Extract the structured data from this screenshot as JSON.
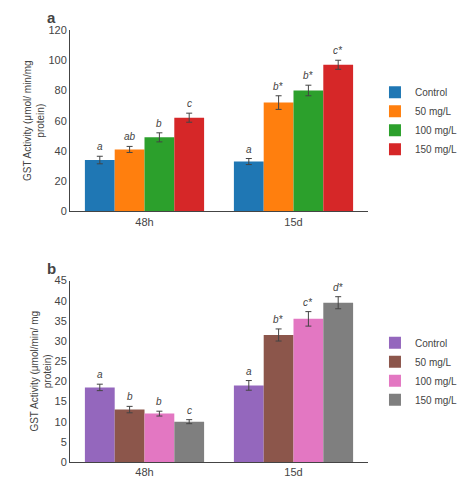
{
  "chart_data": [
    {
      "type": "bar",
      "title": "a",
      "ylabel": "GST Activity (μmol/ min/mg\nprotein)",
      "categories": [
        "48h",
        "15d"
      ],
      "series": [
        {
          "name": "Control",
          "values": [
            34,
            33
          ],
          "errors": [
            2.5,
            2.0
          ],
          "annotations": [
            "a",
            "a"
          ]
        },
        {
          "name": "50 mg/L",
          "values": [
            41,
            72
          ],
          "errors": [
            2.0,
            4.5
          ],
          "annotations": [
            "ab",
            "b*"
          ]
        },
        {
          "name": "100 mg/L",
          "values": [
            49,
            80
          ],
          "errors": [
            3.0,
            3.5
          ],
          "annotations": [
            "b",
            "b*"
          ]
        },
        {
          "name": "150 mg/L",
          "values": [
            62,
            97
          ],
          "errors": [
            3.0,
            3.0
          ],
          "annotations": [
            "c",
            "c*"
          ]
        }
      ],
      "ylim": [
        0,
        120
      ],
      "yticks": [
        0,
        20,
        40,
        60,
        80,
        100,
        120
      ],
      "grid": false,
      "legend": "right"
    },
    {
      "type": "bar",
      "title": "b",
      "ylabel": "GST Activity (μmol/min/ mg\nprotein)",
      "categories": [
        "48h",
        "15d"
      ],
      "series": [
        {
          "name": "Control",
          "values": [
            18.5,
            19.0
          ],
          "errors": [
            0.8,
            1.2
          ],
          "annotations": [
            "a",
            "a"
          ]
        },
        {
          "name": "50 mg/L",
          "values": [
            13.0,
            31.5
          ],
          "errors": [
            0.8,
            1.5
          ],
          "annotations": [
            "b",
            "b*"
          ]
        },
        {
          "name": "100 mg/L",
          "values": [
            12.0,
            35.5
          ],
          "errors": [
            0.6,
            1.8
          ],
          "annotations": [
            "b",
            "c*"
          ]
        },
        {
          "name": "150 mg/L",
          "values": [
            10.0,
            39.5
          ],
          "errors": [
            0.5,
            1.5
          ],
          "annotations": [
            "c",
            "d*"
          ]
        }
      ],
      "ylim": [
        0,
        45
      ],
      "yticks": [
        0,
        5,
        10,
        15,
        20,
        25,
        30,
        35,
        40,
        45
      ],
      "grid": false,
      "legend": "right"
    }
  ]
}
